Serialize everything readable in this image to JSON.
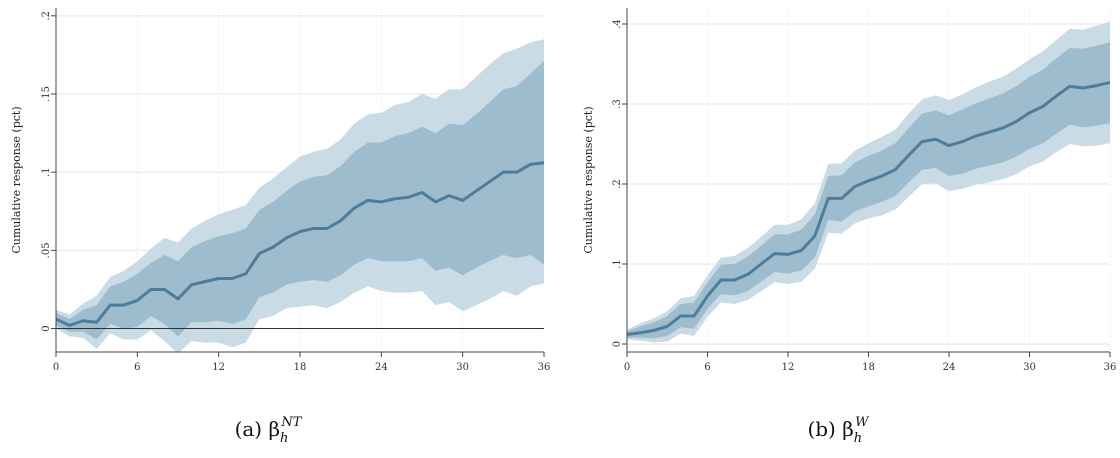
{
  "chart_data": [
    {
      "type": "line",
      "caption": {
        "prefix": "(a) β",
        "sub": "h",
        "sup": "NT"
      },
      "ylabel": "Cumulative response (pct)",
      "xlim": [
        0,
        36
      ],
      "ylim": [
        -0.015,
        0.205
      ],
      "xticks": [
        0,
        6,
        12,
        18,
        24,
        30,
        36
      ],
      "xtick_labels": [
        "0",
        "6",
        "12",
        "18",
        "24",
        "30",
        "36"
      ],
      "yticks": [
        0,
        0.05,
        0.1,
        0.15,
        0.2
      ],
      "ytick_labels": [
        "0",
        ".05",
        ".1",
        ".15",
        ".2"
      ],
      "zero_line": true,
      "grid": true,
      "colors": {
        "line": "#4e7d9c",
        "inner_band": "#9dbccd",
        "outer_band": "#c9dbe5"
      },
      "x": [
        0,
        1,
        2,
        3,
        4,
        5,
        6,
        7,
        8,
        9,
        10,
        11,
        12,
        13,
        14,
        15,
        16,
        17,
        18,
        19,
        20,
        21,
        22,
        23,
        24,
        25,
        26,
        27,
        28,
        29,
        30,
        31,
        32,
        33,
        34,
        35,
        36
      ],
      "series": [
        {
          "role": "estimate",
          "values": [
            0.006,
            0.002,
            0.005,
            0.004,
            0.015,
            0.015,
            0.018,
            0.025,
            0.025,
            0.019,
            0.028,
            0.03,
            0.032,
            0.032,
            0.035,
            0.048,
            0.052,
            0.058,
            0.062,
            0.064,
            0.064,
            0.069,
            0.077,
            0.082,
            0.081,
            0.083,
            0.084,
            0.087,
            0.081,
            0.085,
            0.082,
            0.088,
            0.094,
            0.1,
            0.1,
            0.105,
            0.106
          ]
        },
        {
          "role": "band_inner_upper",
          "values": [
            0.01,
            0.006,
            0.012,
            0.015,
            0.027,
            0.03,
            0.035,
            0.042,
            0.047,
            0.043,
            0.052,
            0.056,
            0.059,
            0.061,
            0.064,
            0.076,
            0.081,
            0.088,
            0.094,
            0.097,
            0.098,
            0.104,
            0.113,
            0.119,
            0.119,
            0.123,
            0.125,
            0.129,
            0.125,
            0.131,
            0.13,
            0.137,
            0.145,
            0.153,
            0.155,
            0.163,
            0.171
          ]
        },
        {
          "role": "band_inner_lower",
          "values": [
            0.002,
            -0.002,
            -0.002,
            -0.007,
            0.003,
            0,
            0.001,
            0.008,
            0.003,
            -0.005,
            0.004,
            0.004,
            0.005,
            0.003,
            0.006,
            0.02,
            0.023,
            0.028,
            0.03,
            0.031,
            0.03,
            0.034,
            0.041,
            0.045,
            0.043,
            0.043,
            0.043,
            0.045,
            0.037,
            0.039,
            0.034,
            0.039,
            0.043,
            0.047,
            0.045,
            0.047,
            0.041
          ]
        },
        {
          "role": "band_outer_upper",
          "values": [
            0.012,
            0.009,
            0.016,
            0.021,
            0.033,
            0.037,
            0.043,
            0.051,
            0.058,
            0.055,
            0.064,
            0.069,
            0.073,
            0.076,
            0.079,
            0.09,
            0.096,
            0.103,
            0.11,
            0.113,
            0.115,
            0.121,
            0.131,
            0.137,
            0.138,
            0.143,
            0.145,
            0.15,
            0.147,
            0.153,
            0.153,
            0.161,
            0.169,
            0.176,
            0.179,
            0.183,
            0.185
          ]
        },
        {
          "role": "band_outer_lower",
          "values": [
            0,
            -0.005,
            -0.006,
            -0.013,
            -0.003,
            -0.007,
            -0.007,
            -0.001,
            -0.008,
            -0.016,
            -0.008,
            -0.009,
            -0.009,
            -0.012,
            -0.009,
            0.006,
            0.008,
            0.013,
            0.014,
            0.015,
            0.013,
            0.017,
            0.023,
            0.027,
            0.024,
            0.023,
            0.023,
            0.024,
            0.015,
            0.017,
            0.011,
            0.015,
            0.019,
            0.024,
            0.021,
            0.027,
            0.029
          ]
        }
      ]
    },
    {
      "type": "line",
      "caption": {
        "prefix": "(b) β",
        "sub": "h",
        "sup": "W"
      },
      "ylabel": "Cumulative response (pct)",
      "xlim": [
        0,
        36
      ],
      "ylim": [
        -0.01,
        0.42
      ],
      "xticks": [
        0,
        6,
        12,
        18,
        24,
        30,
        36
      ],
      "xtick_labels": [
        "0",
        "6",
        "12",
        "18",
        "24",
        "30",
        "36"
      ],
      "yticks": [
        0,
        0.1,
        0.2,
        0.3,
        0.4
      ],
      "ytick_labels": [
        "0",
        ".1",
        ".2",
        ".3",
        ".4"
      ],
      "zero_line": false,
      "grid": true,
      "colors": {
        "line": "#4e7d9c",
        "inner_band": "#9dbccd",
        "outer_band": "#c9dbe5"
      },
      "x": [
        0,
        1,
        2,
        3,
        4,
        5,
        6,
        7,
        8,
        9,
        10,
        11,
        12,
        13,
        14,
        15,
        16,
        17,
        18,
        19,
        20,
        21,
        22,
        23,
        24,
        25,
        26,
        27,
        28,
        29,
        30,
        31,
        32,
        33,
        34,
        35,
        36
      ],
      "series": [
        {
          "role": "estimate",
          "values": [
            0.012,
            0.014,
            0.017,
            0.022,
            0.035,
            0.035,
            0.06,
            0.08,
            0.08,
            0.087,
            0.1,
            0.113,
            0.112,
            0.117,
            0.135,
            0.182,
            0.182,
            0.197,
            0.204,
            0.21,
            0.218,
            0.236,
            0.253,
            0.256,
            0.248,
            0.253,
            0.26,
            0.265,
            0.27,
            0.278,
            0.289,
            0.297,
            0.31,
            0.322,
            0.32,
            0.323,
            0.327
          ]
        },
        {
          "role": "band_inner_upper",
          "values": [
            0.016,
            0.022,
            0.027,
            0.035,
            0.05,
            0.052,
            0.077,
            0.099,
            0.1,
            0.109,
            0.123,
            0.137,
            0.137,
            0.143,
            0.162,
            0.21,
            0.211,
            0.227,
            0.235,
            0.242,
            0.251,
            0.27,
            0.288,
            0.292,
            0.286,
            0.293,
            0.301,
            0.307,
            0.313,
            0.322,
            0.334,
            0.343,
            0.357,
            0.37,
            0.369,
            0.373,
            0.377
          ]
        },
        {
          "role": "band_inner_lower",
          "values": [
            0.008,
            0.008,
            0.007,
            0.01,
            0.021,
            0.019,
            0.044,
            0.062,
            0.061,
            0.066,
            0.078,
            0.09,
            0.088,
            0.092,
            0.108,
            0.155,
            0.153,
            0.166,
            0.172,
            0.178,
            0.185,
            0.202,
            0.218,
            0.22,
            0.21,
            0.213,
            0.219,
            0.223,
            0.227,
            0.234,
            0.244,
            0.251,
            0.263,
            0.274,
            0.271,
            0.273,
            0.276
          ]
        },
        {
          "role": "band_outer_upper",
          "values": [
            0.018,
            0.026,
            0.032,
            0.041,
            0.057,
            0.06,
            0.086,
            0.108,
            0.11,
            0.12,
            0.134,
            0.149,
            0.149,
            0.156,
            0.176,
            0.225,
            0.226,
            0.242,
            0.251,
            0.259,
            0.268,
            0.288,
            0.306,
            0.311,
            0.305,
            0.312,
            0.321,
            0.328,
            0.334,
            0.344,
            0.356,
            0.366,
            0.38,
            0.394,
            0.393,
            0.398,
            0.403
          ]
        },
        {
          "role": "band_outer_lower",
          "values": [
            0.006,
            0.004,
            0.002,
            0.003,
            0.013,
            0.01,
            0.034,
            0.052,
            0.05,
            0.055,
            0.066,
            0.077,
            0.075,
            0.078,
            0.094,
            0.139,
            0.138,
            0.151,
            0.157,
            0.161,
            0.168,
            0.184,
            0.2,
            0.201,
            0.191,
            0.194,
            0.199,
            0.202,
            0.206,
            0.212,
            0.222,
            0.228,
            0.24,
            0.25,
            0.247,
            0.248,
            0.251
          ]
        }
      ]
    }
  ]
}
